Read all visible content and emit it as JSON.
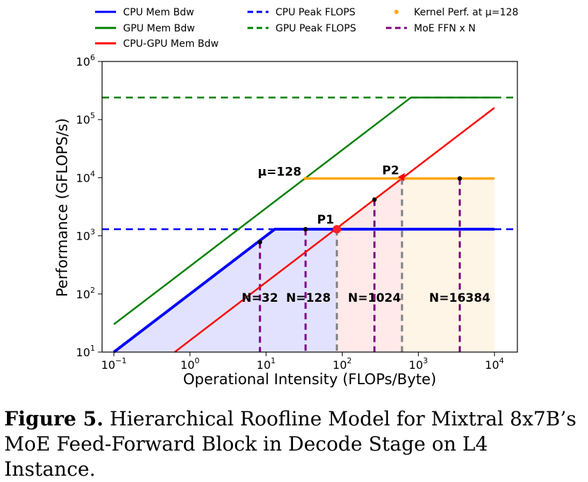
{
  "chart_data": {
    "type": "line",
    "xlabel": "Operational Intensity (FLOPs/Byte)",
    "ylabel": "Performance (GFLOPS/s)",
    "x_scale": "log",
    "y_scale": "log",
    "xlim": [
      0.07,
      20000
    ],
    "ylim": [
      10,
      1000000
    ],
    "x_ticks": [
      {
        "value": 0.1,
        "base": "10",
        "exp": "−1"
      },
      {
        "value": 1,
        "base": "10",
        "exp": "0"
      },
      {
        "value": 10,
        "base": "10",
        "exp": "1"
      },
      {
        "value": 100,
        "base": "10",
        "exp": "2"
      },
      {
        "value": 1000,
        "base": "10",
        "exp": "3"
      },
      {
        "value": 10000,
        "base": "10",
        "exp": "4"
      }
    ],
    "y_ticks": [
      {
        "value": 10,
        "base": "10",
        "exp": "1"
      },
      {
        "value": 100,
        "base": "10",
        "exp": "2"
      },
      {
        "value": 1000,
        "base": "10",
        "exp": "3"
      },
      {
        "value": 10000,
        "base": "10",
        "exp": "4"
      },
      {
        "value": 100000,
        "base": "10",
        "exp": "5"
      },
      {
        "value": 1000000,
        "base": "10",
        "exp": "6"
      }
    ],
    "grid": false,
    "legend_position": "top",
    "series": [
      {
        "name": "CPU Mem Bdw",
        "color": "#0000ff",
        "style": "solid",
        "points": [
          [
            0.1,
            10
          ],
          [
            13,
            1300
          ],
          [
            10000,
            1300
          ]
        ]
      },
      {
        "name": "GPU Mem Bdw",
        "color": "#008000",
        "style": "solid",
        "points": [
          [
            0.1,
            30
          ],
          [
            800,
            240000
          ],
          [
            10000,
            240000
          ]
        ]
      },
      {
        "name": "CPU-GPU Mem Bdw",
        "color": "#ff0000",
        "style": "solid",
        "points": [
          [
            0.63,
            10
          ],
          [
            10000,
            160000
          ]
        ]
      },
      {
        "name": "CPU Peak FLOPS",
        "color": "#0000ff",
        "style": "dashed",
        "y": 1300
      },
      {
        "name": "GPU Peak FLOPS",
        "color": "#008000",
        "style": "dashed",
        "y": 240000
      },
      {
        "name": "Kernel Perf. at μ=128",
        "color": "#ffa500",
        "style": "solid",
        "points": [
          [
            33,
            9700
          ],
          [
            10000,
            9700
          ]
        ]
      }
    ],
    "moe_ffn": {
      "name": "MoE FFN x N",
      "color": "#800080",
      "points": [
        {
          "x": 8.3,
          "y": 780,
          "label": "N=32"
        },
        {
          "x": 33,
          "y": 1300,
          "label": "N=128"
        },
        {
          "x": 265,
          "y": 4200,
          "label": "N=1024"
        },
        {
          "x": 3500,
          "y": 9700,
          "label": "N=16384"
        }
      ]
    },
    "gray_markers": [
      {
        "x": 85,
        "y": 1300
      },
      {
        "x": 610,
        "y": 9700
      }
    ],
    "named_points": [
      {
        "label": "P1",
        "x": 85,
        "y": 1300
      },
      {
        "label": "P2",
        "x": 610,
        "y": 9700
      }
    ],
    "annotations": [
      {
        "text": "μ=128",
        "x": 33,
        "y": 9700
      }
    ],
    "shaded_regions": [
      {
        "color": "#d8d8ff",
        "x_range": [
          0.1,
          85
        ],
        "upper": "CPU roofline"
      },
      {
        "color": "#ffe2e2",
        "x_range": [
          85,
          610
        ],
        "upper": "CPU-GPU Mem Bdw"
      },
      {
        "color": "#fff1dd",
        "x_range": [
          610,
          10000
        ],
        "upper": 9700
      }
    ]
  },
  "caption": {
    "label": "Figure 5.",
    "text": " Hierarchical Roofline Model for Mixtral 8x7B’s MoE Feed-Forward Block in Decode Stage on L4 Instance."
  }
}
